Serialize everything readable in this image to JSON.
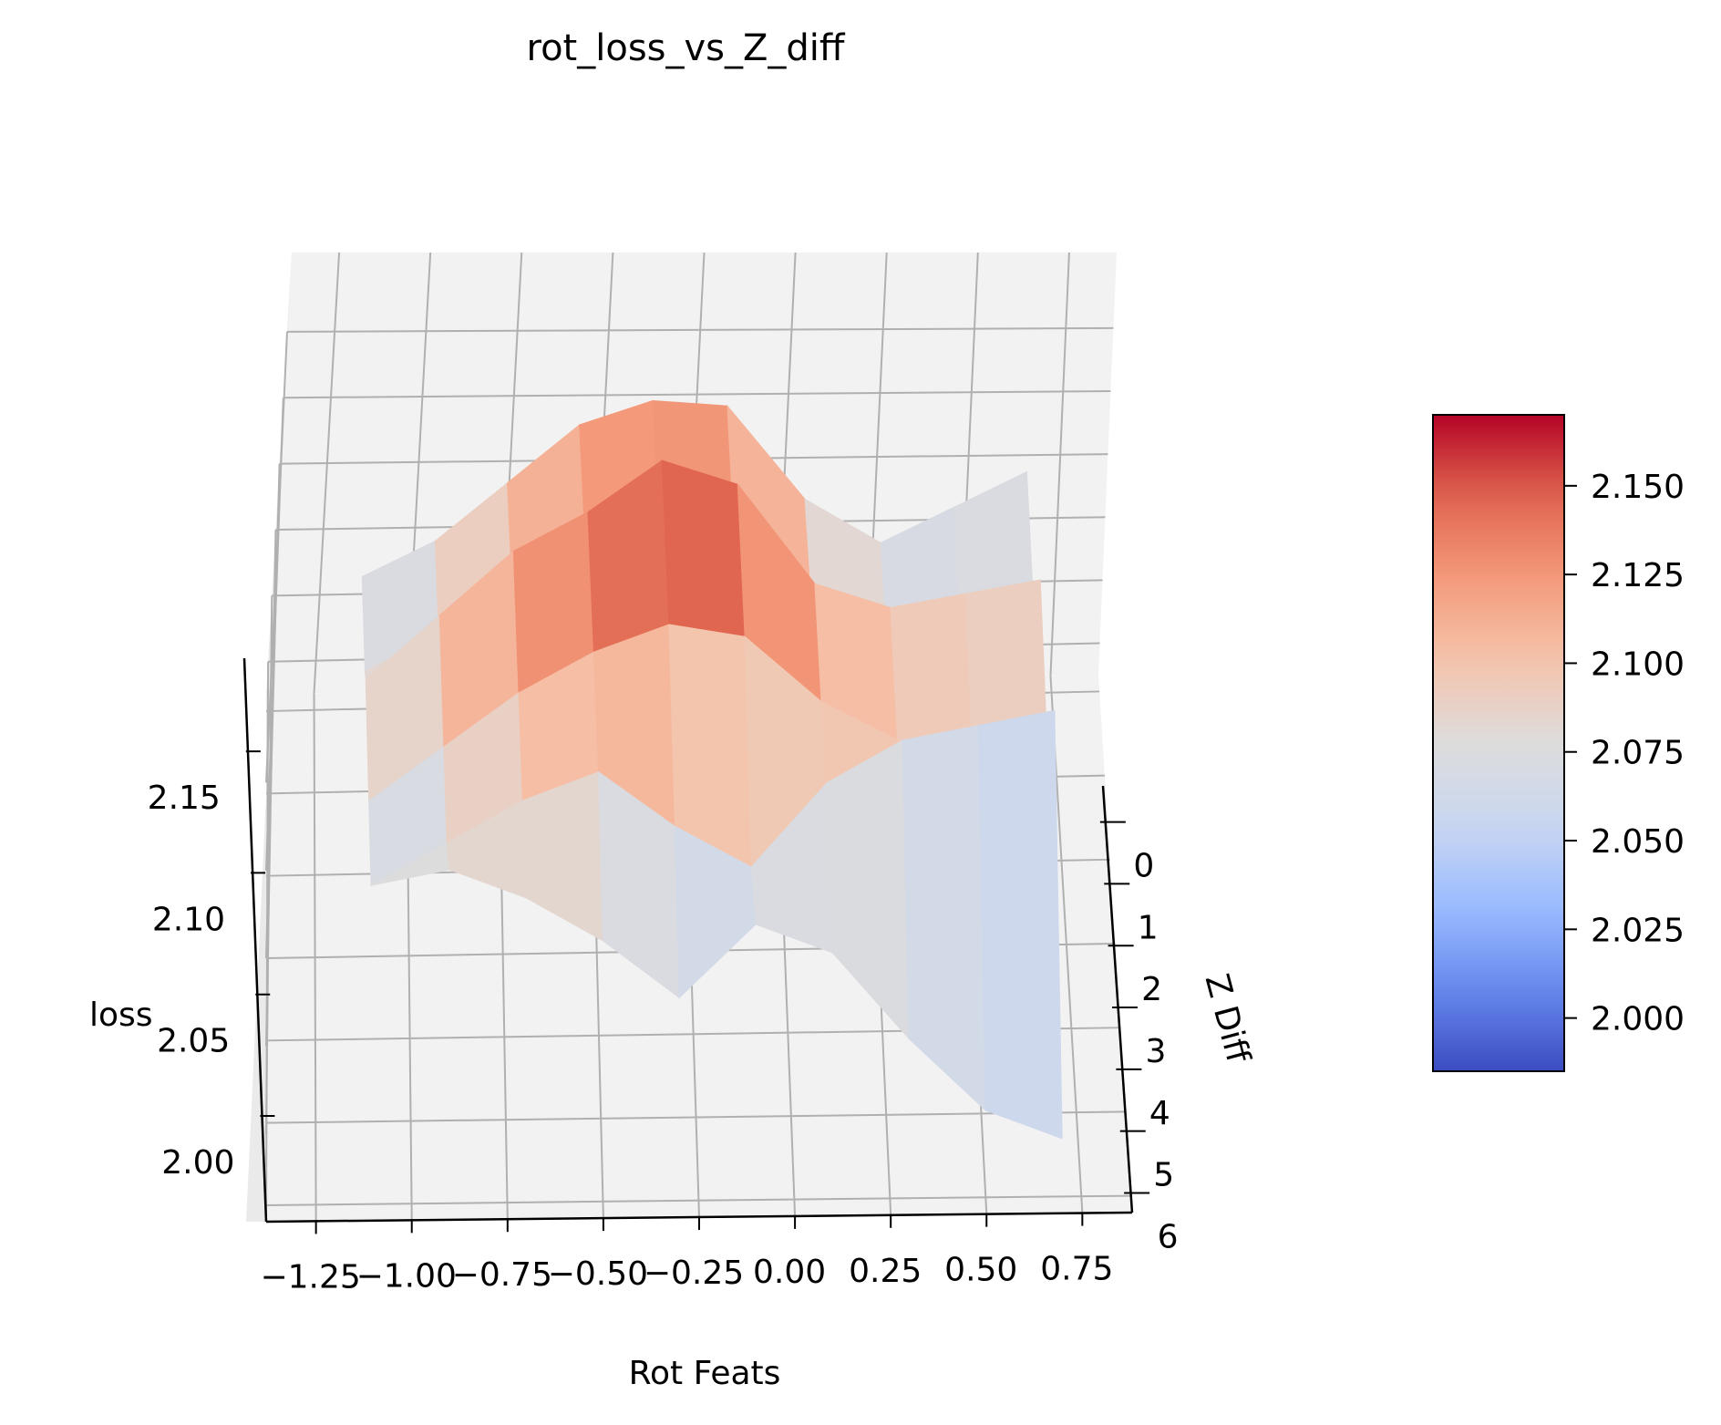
{
  "chart_data": {
    "type": "surface",
    "title": "rot_loss_vs_Z_diff",
    "xlabel": "Rot Feats",
    "ylabel": "Z Diff",
    "zlabel": "loss",
    "colormap": "coolwarm",
    "colormap_stops": [
      "#3b4cc0",
      "#6788ee",
      "#9abbff",
      "#c9d7f0",
      "#dddcdc",
      "#f5c4ac",
      "#f49a7b",
      "#e0654f",
      "#b40426"
    ],
    "x_ticks": [
      -1.25,
      -1.0,
      -0.75,
      -0.5,
      -0.25,
      0.0,
      0.25,
      0.5,
      0.75
    ],
    "x_tick_labels": [
      "−1.25",
      "−1.00",
      "−0.75",
      "−0.50",
      "−0.25",
      "0.00",
      "0.25",
      "0.50",
      "0.75"
    ],
    "y_ticks": [
      0,
      1,
      2,
      3,
      4,
      5,
      6
    ],
    "y_tick_labels": [
      "0",
      "1",
      "2",
      "3",
      "4",
      "5",
      "6"
    ],
    "z_ticks": [
      2.0,
      2.05,
      2.1,
      2.15
    ],
    "z_tick_labels": [
      "2.00",
      "2.05",
      "2.10",
      "2.15"
    ],
    "xlim": [
      -1.38,
      0.88
    ],
    "ylim": [
      -0.2,
      6.2
    ],
    "zlim": [
      1.975,
      2.19
    ],
    "colorbar": {
      "range": [
        1.985,
        2.17
      ],
      "ticks": [
        2.0,
        2.025,
        2.05,
        2.075,
        2.1,
        2.125,
        2.15
      ],
      "tick_labels": [
        "2.000",
        "2.025",
        "2.050",
        "2.075",
        "2.100",
        "2.125",
        "2.150"
      ]
    },
    "series": [
      {
        "name": "Z Diff = 1",
        "z_diff": 1,
        "x": [
          -1.1,
          -0.9,
          -0.7,
          -0.5,
          -0.3,
          -0.1,
          0.1,
          0.3,
          0.5,
          0.7
        ],
        "loss": [
          2.07,
          2.085,
          2.11,
          2.135,
          2.145,
          2.142,
          2.1,
          2.08,
          2.095,
          2.11
        ]
      },
      {
        "name": "Z Diff = 2",
        "z_diff": 2,
        "x": [
          -1.1,
          -0.9,
          -0.7,
          -0.5,
          -0.3,
          -0.1,
          0.1,
          0.3,
          0.5,
          0.7
        ],
        "loss": [
          2.06,
          2.075,
          2.095,
          2.105,
          2.11,
          2.105,
          2.09,
          2.06,
          2.045,
          2.04
        ]
      },
      {
        "name": "Z Diff = 3",
        "z_diff": 3,
        "x": [
          -1.1,
          -0.9,
          -0.7,
          -0.5,
          -0.3,
          -0.1,
          0.1,
          0.3,
          0.5,
          0.7
        ],
        "loss": [
          2.085,
          2.11,
          2.135,
          2.15,
          2.17,
          2.16,
          2.12,
          2.11,
          2.115,
          2.12
        ]
      },
      {
        "name": "Z Diff = 4",
        "z_diff": 4,
        "x": [
          -1.1,
          -0.9,
          -0.7,
          -0.5,
          -0.3,
          -0.1,
          0.1,
          0.3,
          0.5,
          0.7
        ],
        "loss": [
          2.065,
          2.085,
          2.105,
          2.12,
          2.13,
          2.125,
          2.1,
          2.085,
          2.07,
          2.06
        ]
      },
      {
        "name": "Z Diff = 5",
        "z_diff": 5,
        "x": [
          -1.1,
          -0.9,
          -0.7,
          -0.5,
          -0.3,
          -0.1,
          0.1,
          0.3,
          0.5,
          0.7
        ],
        "loss": [
          2.06,
          2.075,
          2.09,
          2.1,
          2.08,
          2.065,
          2.095,
          2.11,
          2.115,
          2.12
        ]
      },
      {
        "name": "Z Diff = 6",
        "z_diff": 6,
        "x": [
          -1.1,
          -0.9,
          -0.7,
          -0.5,
          -0.3,
          -0.1,
          0.1,
          0.3,
          0.5,
          0.7
        ],
        "loss": [
          2.085,
          2.09,
          2.08,
          2.065,
          2.045,
          2.07,
          2.06,
          2.03,
          2.005,
          1.995
        ]
      }
    ]
  }
}
